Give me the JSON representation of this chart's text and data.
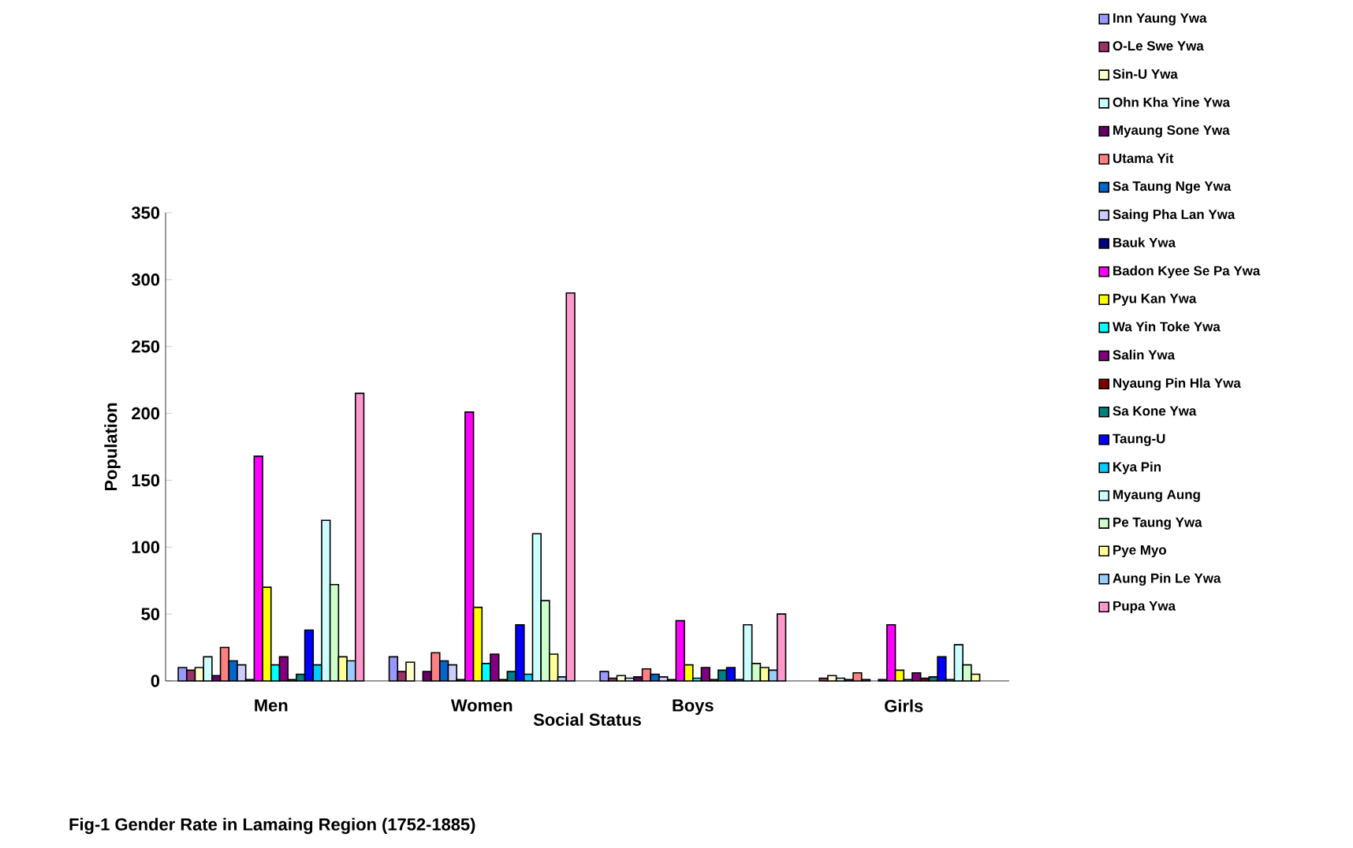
{
  "chart_data": {
    "type": "bar",
    "title": "Fig-1 Gender Rate in Lamaing Region (1752-1885)",
    "xlabel": "Social Status",
    "ylabel": "Population",
    "categories": [
      "Men",
      "Women",
      "Boys",
      "Girls"
    ],
    "ylim": [
      0,
      350
    ],
    "yticks": [
      0,
      50,
      100,
      150,
      200,
      250,
      300,
      350
    ],
    "grid": false,
    "legend": "right",
    "series": [
      {
        "name": "Inn Yaung Ywa",
        "color": "#9999ff",
        "values": [
          10,
          18,
          7,
          null
        ]
      },
      {
        "name": "O-Le Swe Ywa",
        "color": "#993366",
        "values": [
          8,
          7,
          2,
          2
        ]
      },
      {
        "name": "Sin-U Ywa",
        "color": "#ffffcc",
        "values": [
          10,
          14,
          4,
          4
        ]
      },
      {
        "name": "Ohn Kha Yine Ywa",
        "color": "#ccffff",
        "values": [
          18,
          null,
          2,
          2
        ]
      },
      {
        "name": "Myaung Sone Ywa",
        "color": "#660066",
        "values": [
          4,
          7,
          3,
          1
        ]
      },
      {
        "name": "Utama Yit",
        "color": "#ff8080",
        "values": [
          25,
          21,
          9,
          6
        ]
      },
      {
        "name": "Sa Taung Nge Ywa",
        "color": "#0066cc",
        "values": [
          15,
          15,
          5,
          1
        ]
      },
      {
        "name": "Saing Pha Lan Ywa",
        "color": "#ccccff",
        "values": [
          12,
          12,
          3,
          null
        ]
      },
      {
        "name": "Bauk Ywa",
        "color": "#000080",
        "values": [
          1,
          1,
          1,
          1
        ]
      },
      {
        "name": "Badon Kyee Se Pa Ywa",
        "color": "#ff00ff",
        "values": [
          168,
          201,
          45,
          42
        ]
      },
      {
        "name": "Pyu Kan Ywa",
        "color": "#ffff00",
        "values": [
          70,
          55,
          12,
          8
        ]
      },
      {
        "name": "Wa Yin Toke Ywa",
        "color": "#00ffff",
        "values": [
          12,
          13,
          2,
          1
        ]
      },
      {
        "name": "Salin Ywa",
        "color": "#800080",
        "values": [
          18,
          20,
          10,
          6
        ]
      },
      {
        "name": "Nyaung Pin Hla Ywa",
        "color": "#800000",
        "values": [
          1,
          1,
          1,
          2
        ]
      },
      {
        "name": "Sa Kone Ywa",
        "color": "#008080",
        "values": [
          5,
          7,
          8,
          3
        ]
      },
      {
        "name": "Taung-U",
        "color": "#0000ff",
        "values": [
          38,
          42,
          10,
          18
        ]
      },
      {
        "name": "Kya Pin",
        "color": "#00ccff",
        "values": [
          12,
          5,
          1,
          1
        ]
      },
      {
        "name": "Myaung Aung",
        "color": "#ccffff",
        "values": [
          120,
          110,
          42,
          27
        ]
      },
      {
        "name": "Pe Taung Ywa",
        "color": "#ccffcc",
        "values": [
          72,
          60,
          13,
          12
        ]
      },
      {
        "name": "Pye Myo",
        "color": "#ffff99",
        "values": [
          18,
          20,
          10,
          5
        ]
      },
      {
        "name": "Aung Pin Le Ywa",
        "color": "#99ccff",
        "values": [
          15,
          3,
          8,
          null
        ]
      },
      {
        "name": "Pupa Ywa",
        "color": "#ff99cc",
        "values": [
          215,
          290,
          50,
          null
        ]
      }
    ]
  }
}
